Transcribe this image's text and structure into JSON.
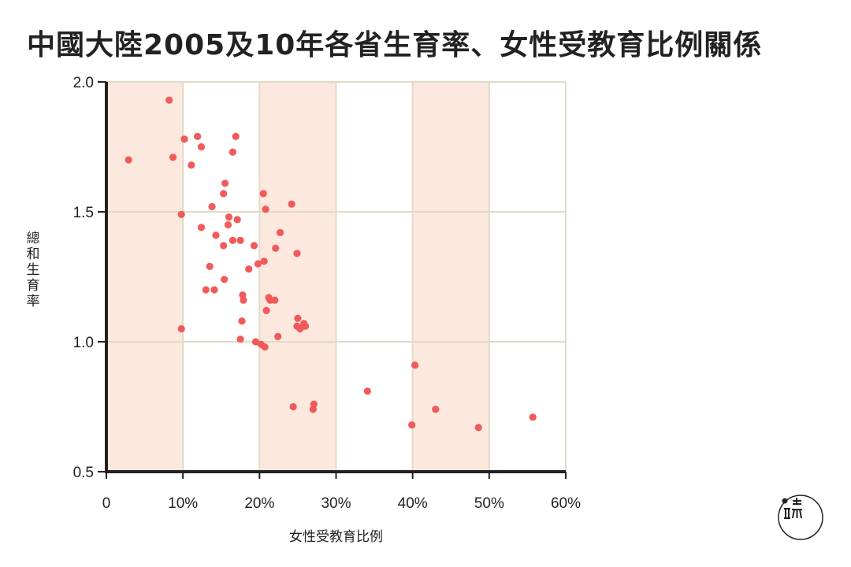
{
  "title": "中國大陸2005及10年各省生育率、女性受教育比例關係",
  "chart_data": {
    "type": "scatter",
    "title": "中國大陸2005及10年各省生育率、女性受教育比例關係",
    "xlabel": "女性受教育比例",
    "ylabel": "總和生育率",
    "xlim": [
      0,
      60
    ],
    "ylim": [
      0.5,
      2.0
    ],
    "x_ticks": [
      "0",
      "10%",
      "20%",
      "30%",
      "40%",
      "50%",
      "60%"
    ],
    "y_ticks": [
      "0.5",
      "1.0",
      "1.5",
      "2.0"
    ],
    "shaded_x_bands": [
      [
        0,
        10
      ],
      [
        20,
        30
      ],
      [
        40,
        50
      ]
    ],
    "grid": true,
    "point_color": "#f05a5a",
    "band_color": "#fce8dd",
    "grid_color": "#e2dac8",
    "points": [
      [
        8.2,
        1.93
      ],
      [
        2.9,
        1.7
      ],
      [
        8.7,
        1.71
      ],
      [
        10.2,
        1.78
      ],
      [
        11.9,
        1.79
      ],
      [
        12.4,
        1.75
      ],
      [
        11.1,
        1.68
      ],
      [
        16.9,
        1.79
      ],
      [
        16.5,
        1.73
      ],
      [
        15.5,
        1.61
      ],
      [
        15.3,
        1.57
      ],
      [
        9.8,
        1.49
      ],
      [
        13.8,
        1.52
      ],
      [
        16.0,
        1.48
      ],
      [
        17.1,
        1.47
      ],
      [
        12.4,
        1.44
      ],
      [
        15.9,
        1.45
      ],
      [
        14.3,
        1.41
      ],
      [
        15.3,
        1.37
      ],
      [
        16.5,
        1.39
      ],
      [
        17.5,
        1.39
      ],
      [
        19.3,
        1.37
      ],
      [
        20.5,
        1.57
      ],
      [
        20.8,
        1.51
      ],
      [
        24.2,
        1.53
      ],
      [
        22.7,
        1.42
      ],
      [
        22.1,
        1.36
      ],
      [
        24.9,
        1.34
      ],
      [
        20.6,
        1.31
      ],
      [
        19.8,
        1.3
      ],
      [
        18.6,
        1.28
      ],
      [
        13.5,
        1.29
      ],
      [
        15.4,
        1.24
      ],
      [
        13.0,
        1.2
      ],
      [
        14.1,
        1.2
      ],
      [
        17.8,
        1.18
      ],
      [
        17.9,
        1.16
      ],
      [
        21.2,
        1.17
      ],
      [
        21.4,
        1.16
      ],
      [
        22.0,
        1.16
      ],
      [
        20.9,
        1.12
      ],
      [
        25.0,
        1.09
      ],
      [
        24.9,
        1.06
      ],
      [
        25.3,
        1.05
      ],
      [
        25.8,
        1.07
      ],
      [
        26.0,
        1.06
      ],
      [
        17.7,
        1.08
      ],
      [
        9.8,
        1.05
      ],
      [
        22.4,
        1.02
      ],
      [
        17.5,
        1.01
      ],
      [
        19.5,
        1.0
      ],
      [
        20.2,
        0.99
      ],
      [
        20.7,
        0.98
      ],
      [
        40.3,
        0.91
      ],
      [
        34.1,
        0.81
      ],
      [
        24.4,
        0.75
      ],
      [
        27.1,
        0.76
      ],
      [
        27.0,
        0.74
      ],
      [
        43.0,
        0.74
      ],
      [
        39.9,
        0.68
      ],
      [
        48.6,
        0.67
      ],
      [
        55.7,
        0.71
      ]
    ]
  },
  "colors": {
    "axis": "#222222",
    "text": "#222222"
  },
  "logo": {
    "icon": "initium-logo"
  }
}
